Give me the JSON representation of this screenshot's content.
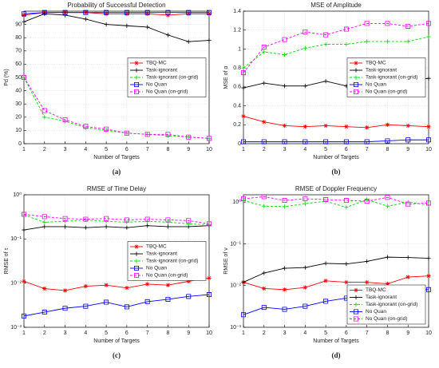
{
  "chart_data": [
    {
      "type": "line",
      "title": "Probability of Successful Detection",
      "caption": "(a)",
      "xlabel": "Number of Targets",
      "ylabel": "Pd (%)",
      "x": [
        1,
        2,
        3,
        4,
        5,
        6,
        7,
        8,
        9,
        10
      ],
      "xlim": [
        1,
        10
      ],
      "xticks": [
        1,
        2,
        3,
        4,
        5,
        6,
        7,
        8,
        9,
        10
      ],
      "ylim": [
        0,
        100
      ],
      "yticks": [
        0,
        10,
        20,
        30,
        40,
        50,
        60,
        70,
        80,
        90
      ],
      "log": false,
      "grid": true,
      "legend": "center right",
      "series": [
        {
          "name": "TBQ-MC",
          "color": "#ff0000",
          "marker": "star",
          "dash": false,
          "values": [
            97,
            99,
            99,
            99,
            98,
            98,
            98,
            97,
            98,
            98
          ]
        },
        {
          "name": "Task-ignorant",
          "color": "#000000",
          "marker": "plus",
          "dash": false,
          "values": [
            92,
            98,
            97,
            94,
            90,
            89,
            88,
            82,
            77,
            78
          ]
        },
        {
          "name": "Task-ignorant (on-grid)",
          "color": "#00dd00",
          "marker": "plus",
          "dash": true,
          "values": [
            50,
            20,
            17,
            12,
            10,
            8,
            7,
            6,
            5,
            4
          ]
        },
        {
          "name": "No Quan",
          "color": "#0000ff",
          "marker": "square",
          "dash": false,
          "values": [
            98,
            99,
            99,
            99,
            99,
            99,
            99,
            99,
            99,
            99
          ]
        },
        {
          "name": "No Quan (on-grid)",
          "color": "#ff00ff",
          "marker": "square",
          "dash": true,
          "values": [
            50,
            25,
            18,
            13,
            11,
            8,
            7,
            7,
            5,
            4
          ]
        }
      ]
    },
    {
      "type": "line",
      "title": "MSE of Amplitude",
      "caption": "(b)",
      "xlabel": "Number of Targets",
      "ylabel": "MSE of α",
      "x": [
        1,
        2,
        3,
        4,
        5,
        6,
        7,
        8,
        9,
        10
      ],
      "xlim": [
        1,
        10
      ],
      "xticks": [
        1,
        2,
        3,
        4,
        5,
        6,
        7,
        8,
        9,
        10
      ],
      "ylim": [
        0,
        1.4
      ],
      "yticks": [
        0,
        0.2,
        0.4,
        0.6,
        0.8,
        1,
        1.2,
        1.4
      ],
      "log": false,
      "grid": true,
      "legend": "center right",
      "series": [
        {
          "name": "TBQ-MC",
          "color": "#ff0000",
          "marker": "star",
          "dash": false,
          "values": [
            0.29,
            0.23,
            0.19,
            0.18,
            0.19,
            0.18,
            0.17,
            0.2,
            0.19,
            0.18
          ]
        },
        {
          "name": "Task-ignorant",
          "color": "#000000",
          "marker": "plus",
          "dash": false,
          "values": [
            0.59,
            0.64,
            0.61,
            0.61,
            0.66,
            0.61,
            0.67,
            0.63,
            0.67,
            0.69
          ]
        },
        {
          "name": "Task-ignorant (on-grid)",
          "color": "#00dd00",
          "marker": "plus",
          "dash": true,
          "values": [
            0.8,
            0.97,
            0.94,
            1.01,
            1.05,
            1.05,
            1.08,
            1.08,
            1.08,
            1.13
          ]
        },
        {
          "name": "No Quan",
          "color": "#0000ff",
          "marker": "square",
          "dash": false,
          "values": [
            0.02,
            0.02,
            0.02,
            0.02,
            0.02,
            0.02,
            0.02,
            0.03,
            0.04,
            0.04
          ]
        },
        {
          "name": "No Quan (on-grid)",
          "color": "#ff00ff",
          "marker": "square",
          "dash": true,
          "values": [
            0.75,
            1.02,
            1.1,
            1.18,
            1.15,
            1.21,
            1.27,
            1.27,
            1.24,
            1.27
          ]
        }
      ]
    },
    {
      "type": "line",
      "title": "RMSE of Time Delay",
      "caption": "(c)",
      "xlabel": "Number of Targets",
      "ylabel": "RMSE of τ",
      "x": [
        1,
        2,
        3,
        4,
        5,
        6,
        7,
        8,
        9,
        10
      ],
      "xlim": [
        1,
        10
      ],
      "xticks": [
        1,
        2,
        3,
        4,
        5,
        6,
        7,
        8,
        9,
        10
      ],
      "ylim": [
        0.001,
        1
      ],
      "yticks": [
        {
          "value": 0.001,
          "label": "10⁻³"
        },
        {
          "value": 0.01,
          "label": "10⁻²"
        },
        {
          "value": 0.1,
          "label": "10⁻¹"
        },
        {
          "value": 1,
          "label": "10⁰"
        }
      ],
      "log": true,
      "grid": true,
      "legend": "center right",
      "series": [
        {
          "name": "TBQ-MC",
          "color": "#ff0000",
          "marker": "star",
          "dash": false,
          "values": [
            0.011,
            0.0075,
            0.0068,
            0.0085,
            0.009,
            0.0078,
            0.0095,
            0.009,
            0.011,
            0.013
          ]
        },
        {
          "name": "Task-ignorant",
          "color": "#000000",
          "marker": "plus",
          "dash": false,
          "values": [
            0.16,
            0.19,
            0.19,
            0.18,
            0.19,
            0.18,
            0.2,
            0.19,
            0.19,
            0.2
          ]
        },
        {
          "name": "Task-ignorant (on-grid)",
          "color": "#00dd00",
          "marker": "plus",
          "dash": true,
          "values": [
            0.35,
            0.24,
            0.25,
            0.27,
            0.25,
            0.24,
            0.25,
            0.24,
            0.22,
            0.21
          ]
        },
        {
          "name": "No Quan",
          "color": "#0000ff",
          "marker": "square",
          "dash": false,
          "values": [
            0.0018,
            0.0022,
            0.0027,
            0.003,
            0.0037,
            0.0029,
            0.0038,
            0.0043,
            0.005,
            0.0055
          ]
        },
        {
          "name": "No Quan (on-grid)",
          "color": "#ff00ff",
          "marker": "square",
          "dash": true,
          "values": [
            0.36,
            0.32,
            0.29,
            0.28,
            0.29,
            0.27,
            0.28,
            0.27,
            0.26,
            0.22
          ]
        }
      ]
    },
    {
      "type": "line",
      "title": "RMSE of Doppler Frequency",
      "caption": "(d)",
      "xlabel": "Number of Targets",
      "ylabel": "RMSE of ν",
      "x": [
        1,
        2,
        3,
        4,
        5,
        6,
        7,
        8,
        9,
        10
      ],
      "xlim": [
        1,
        10
      ],
      "xticks": [
        1,
        2,
        3,
        4,
        5,
        6,
        7,
        8,
        9,
        10
      ],
      "ylim": [
        0.001,
        1.5
      ],
      "yticks": [
        {
          "value": 0.001,
          "label": "10⁻³"
        },
        {
          "value": 0.01,
          "label": "10⁻²"
        },
        {
          "value": 0.1,
          "label": "10⁻¹"
        },
        {
          "value": 1,
          "label": "10⁰"
        }
      ],
      "log": true,
      "grid": true,
      "legend": "lower right",
      "series": [
        {
          "name": "TBQ-MC",
          "color": "#ff0000",
          "marker": "star",
          "dash": false,
          "values": [
            0.012,
            0.0085,
            0.008,
            0.009,
            0.013,
            0.012,
            0.012,
            0.011,
            0.016,
            0.017
          ]
        },
        {
          "name": "Task-ignorant",
          "color": "#000000",
          "marker": "plus",
          "dash": false,
          "values": [
            0.012,
            0.02,
            0.026,
            0.027,
            0.034,
            0.033,
            0.038,
            0.048,
            0.047,
            0.045
          ]
        },
        {
          "name": "Task-ignorant (on-grid)",
          "color": "#00dd00",
          "marker": "plus",
          "dash": true,
          "values": [
            1.1,
            0.8,
            0.78,
            0.92,
            1.05,
            0.75,
            1.15,
            0.8,
            1,
            0.85
          ]
        },
        {
          "name": "No Quan",
          "color": "#0000ff",
          "marker": "square",
          "dash": false,
          "values": [
            0.002,
            0.003,
            0.0027,
            0.0032,
            0.0042,
            0.005,
            0.006,
            0.0055,
            0.008,
            0.008
          ]
        },
        {
          "name": "No Quan (on-grid)",
          "color": "#ff00ff",
          "marker": "square",
          "dash": true,
          "values": [
            1.2,
            1.35,
            1.1,
            1.2,
            1.15,
            1.1,
            1.05,
            1.3,
            0.9,
            0.95
          ]
        }
      ]
    }
  ]
}
